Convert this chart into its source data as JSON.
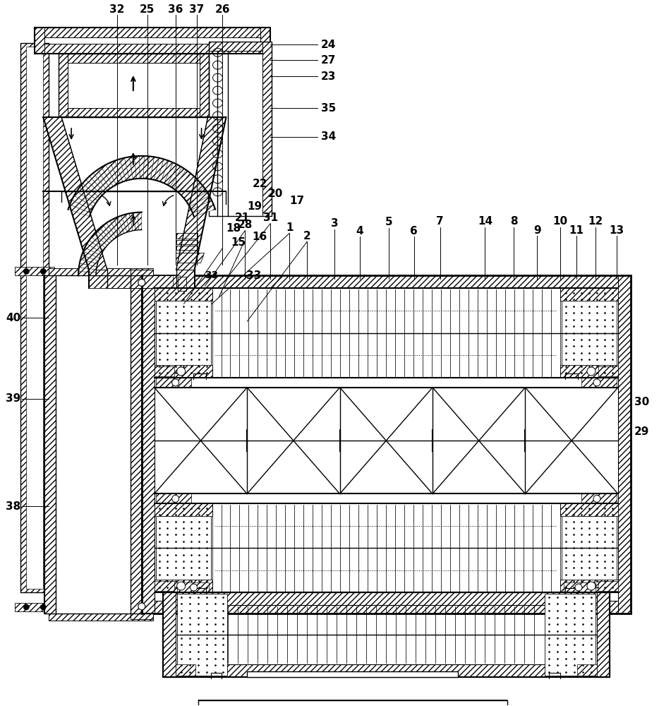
{
  "fig_width": 9.51,
  "fig_height": 10.0,
  "dpi": 100,
  "bg_color": "#ffffff",
  "lc": "#000000",
  "top_labels": [
    [
      "32",
      165,
      12
    ],
    [
      "25",
      208,
      12
    ],
    [
      "36",
      248,
      12
    ],
    [
      "37",
      278,
      12
    ],
    [
      "26",
      315,
      12
    ]
  ],
  "right_labels": [
    [
      "24",
      455,
      62
    ],
    [
      "27",
      455,
      84
    ],
    [
      "23",
      455,
      107
    ],
    [
      "35",
      455,
      152
    ],
    [
      "34",
      455,
      193
    ]
  ],
  "body_labels": [
    [
      "28",
      347,
      318
    ],
    [
      "31",
      383,
      308
    ],
    [
      "1",
      410,
      322
    ],
    [
      "2",
      435,
      334
    ],
    [
      "3",
      474,
      316
    ],
    [
      "4",
      510,
      327
    ],
    [
      "5",
      551,
      314
    ],
    [
      "6",
      587,
      327
    ],
    [
      "7",
      624,
      313
    ],
    [
      "14",
      688,
      313
    ],
    [
      "8",
      729,
      313
    ],
    [
      "9",
      762,
      326
    ],
    [
      "10",
      795,
      313
    ],
    [
      "11",
      818,
      326
    ],
    [
      "12",
      845,
      313
    ],
    [
      "13",
      875,
      326
    ]
  ],
  "left_labels": [
    [
      "22",
      345,
      260
    ],
    [
      "20",
      367,
      274
    ],
    [
      "17",
      398,
      284
    ],
    [
      "19",
      338,
      292
    ],
    [
      "21",
      320,
      308
    ],
    [
      "18",
      308,
      323
    ],
    [
      "15",
      315,
      343
    ],
    [
      "16",
      345,
      335
    ],
    [
      "33",
      337,
      390
    ]
  ],
  "side_labels": [
    [
      "40",
      28,
      450
    ],
    [
      "39",
      28,
      565
    ],
    [
      "38",
      28,
      718
    ]
  ],
  "right_side_labels": [
    [
      "30",
      900,
      570
    ],
    [
      "29",
      900,
      612
    ]
  ]
}
